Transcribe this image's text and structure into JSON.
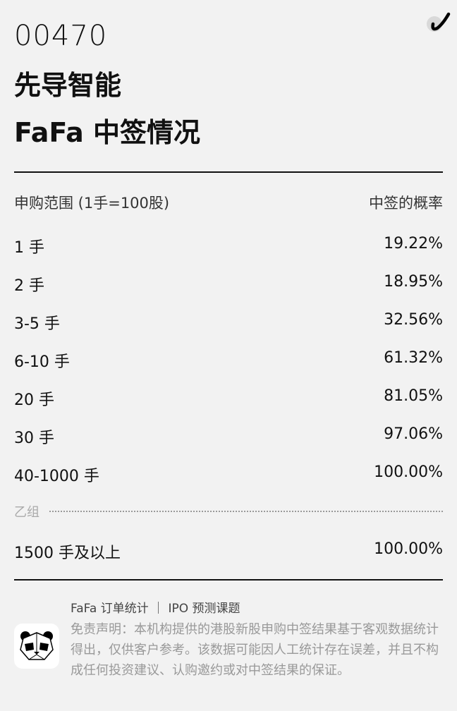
{
  "header": {
    "code": "00470",
    "name": "先导智能",
    "subtitle": "FaFa 中签情况"
  },
  "table": {
    "col_range": "申购范围 (1手=100股)",
    "col_prob": "中签的概率",
    "rows": [
      {
        "range": "1 手",
        "prob": "19.22%"
      },
      {
        "range": "2 手",
        "prob": "18.95%"
      },
      {
        "range": "3-5 手",
        "prob": "32.56%"
      },
      {
        "range": "6-10 手",
        "prob": "61.32%"
      },
      {
        "range": "20 手",
        "prob": "81.05%"
      },
      {
        "range": "30 手",
        "prob": "97.06%"
      },
      {
        "range": "40-1000 手",
        "prob": "100.00%"
      }
    ],
    "group_b_label": "乙组",
    "group_b_rows": [
      {
        "range": "1500 手及以上",
        "prob": "100.00%"
      }
    ]
  },
  "footer": {
    "title": "FaFa 订单统计  ｜  IPO 预测课题",
    "disclaimer": "免责声明：本机构提供的港股新股申购中签结果基于客观数据统计得出，仅供客户参考。该数据可能因人工统计存在误差，并且不构成任何投资建议、认购邀约或对中签结果的保证。",
    "logo_icon": "panda-icon"
  },
  "top_icon": "checkmark-logo-icon"
}
